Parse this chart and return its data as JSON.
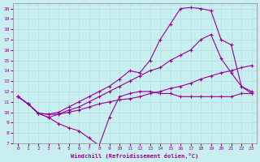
{
  "xlabel": "Windchill (Refroidissement éolien,°C)",
  "bg_color": "#c8eef0",
  "line_color": "#990099",
  "xlim": [
    -0.5,
    23.5
  ],
  "ylim": [
    7,
    20.5
  ],
  "xticks": [
    0,
    1,
    2,
    3,
    4,
    5,
    6,
    7,
    8,
    9,
    10,
    11,
    12,
    13,
    14,
    15,
    16,
    17,
    18,
    19,
    20,
    21,
    22,
    23
  ],
  "yticks": [
    7,
    8,
    9,
    10,
    11,
    12,
    13,
    14,
    15,
    16,
    17,
    18,
    19,
    20
  ],
  "series": [
    {
      "x": [
        0,
        1,
        2,
        3,
        4,
        5,
        6,
        7,
        8,
        9,
        10,
        11,
        12,
        13,
        14,
        15,
        16,
        17,
        18,
        19,
        20,
        21,
        22,
        23
      ],
      "y": [
        11.5,
        10.8,
        9.9,
        9.5,
        8.9,
        8.5,
        8.2,
        7.5,
        6.8,
        9.5,
        11.5,
        11.8,
        12.0,
        12.0,
        11.8,
        11.8,
        11.5,
        11.5,
        11.5,
        11.5,
        11.5,
        11.5,
        11.8,
        11.8
      ]
    },
    {
      "x": [
        0,
        1,
        2,
        3,
        4,
        5,
        6,
        7,
        8,
        9,
        10,
        11,
        12,
        13,
        14,
        15,
        16,
        17,
        18,
        19,
        20,
        21,
        22,
        23
      ],
      "y": [
        11.5,
        10.8,
        9.9,
        9.8,
        9.8,
        10.0,
        10.2,
        10.5,
        10.8,
        11.0,
        11.2,
        11.3,
        11.5,
        11.8,
        12.0,
        12.3,
        12.5,
        12.8,
        13.2,
        13.5,
        13.8,
        14.0,
        14.3,
        14.5
      ]
    },
    {
      "x": [
        0,
        1,
        2,
        3,
        4,
        5,
        6,
        7,
        8,
        9,
        10,
        11,
        12,
        13,
        14,
        15,
        16,
        17,
        18,
        19,
        20,
        21,
        22,
        23
      ],
      "y": [
        11.5,
        10.8,
        9.9,
        9.8,
        10.0,
        10.5,
        11.0,
        11.5,
        12.0,
        12.5,
        13.2,
        14.0,
        13.8,
        15.0,
        17.0,
        18.5,
        20.0,
        20.1,
        20.0,
        19.8,
        17.0,
        16.5,
        12.5,
        12.0
      ]
    },
    {
      "x": [
        0,
        1,
        2,
        3,
        4,
        5,
        6,
        7,
        8,
        9,
        10,
        11,
        12,
        13,
        14,
        15,
        16,
        17,
        18,
        19,
        20,
        21,
        22,
        23
      ],
      "y": [
        11.5,
        10.8,
        9.9,
        9.5,
        9.8,
        10.2,
        10.5,
        11.0,
        11.5,
        12.0,
        12.5,
        13.0,
        13.5,
        14.0,
        14.3,
        15.0,
        15.5,
        16.0,
        17.0,
        17.5,
        15.2,
        13.8,
        12.5,
        11.8
      ]
    }
  ]
}
